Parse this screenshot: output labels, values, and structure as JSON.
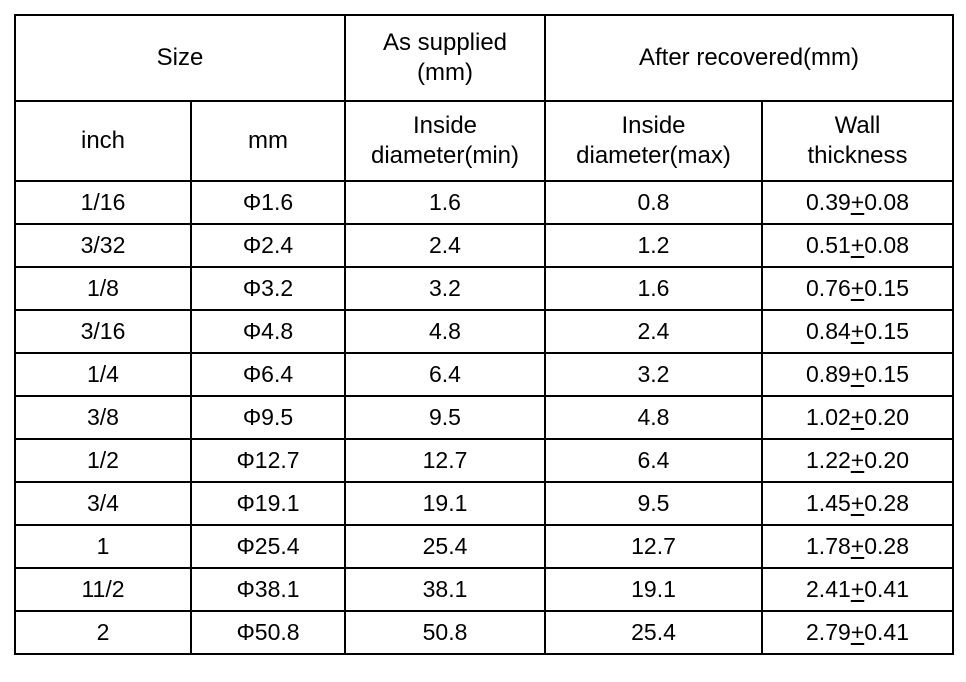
{
  "table": {
    "header": {
      "size": "Size",
      "as_supplied_lines": [
        "As supplied",
        "(mm)"
      ],
      "after_recovered": "After recovered(mm)",
      "col_inch": "inch",
      "col_mm": "mm",
      "inside_min_lines": [
        "Inside",
        "diameter(min)"
      ],
      "inside_max_lines": [
        "Inside",
        "diameter(max)"
      ],
      "wall_lines": [
        "Wall",
        "thickness"
      ]
    },
    "pm_symbol": "+",
    "rows": [
      {
        "inch": "1/16",
        "mm": "Φ1.6",
        "supplied_min": "1.6",
        "recovered_max": "0.8",
        "wall_base": "0.39",
        "wall_tol": "0.08"
      },
      {
        "inch": "3/32",
        "mm": "Φ2.4",
        "supplied_min": "2.4",
        "recovered_max": "1.2",
        "wall_base": "0.51",
        "wall_tol": "0.08"
      },
      {
        "inch": "1/8",
        "mm": "Φ3.2",
        "supplied_min": "3.2",
        "recovered_max": "1.6",
        "wall_base": "0.76",
        "wall_tol": "0.15"
      },
      {
        "inch": "3/16",
        "mm": "Φ4.8",
        "supplied_min": "4.8",
        "recovered_max": "2.4",
        "wall_base": "0.84",
        "wall_tol": "0.15"
      },
      {
        "inch": "1/4",
        "mm": "Φ6.4",
        "supplied_min": "6.4",
        "recovered_max": "3.2",
        "wall_base": "0.89",
        "wall_tol": "0.15"
      },
      {
        "inch": "3/8",
        "mm": "Φ9.5",
        "supplied_min": "9.5",
        "recovered_max": "4.8",
        "wall_base": "1.02",
        "wall_tol": "0.20"
      },
      {
        "inch": "1/2",
        "mm": "Φ12.7",
        "supplied_min": "12.7",
        "recovered_max": "6.4",
        "wall_base": "1.22",
        "wall_tol": "0.20"
      },
      {
        "inch": "3/4",
        "mm": "Φ19.1",
        "supplied_min": "19.1",
        "recovered_max": "9.5",
        "wall_base": "1.45",
        "wall_tol": "0.28"
      },
      {
        "inch": "1",
        "mm": "Φ25.4",
        "supplied_min": "25.4",
        "recovered_max": "12.7",
        "wall_base": "1.78",
        "wall_tol": "0.28"
      },
      {
        "inch": "11/2",
        "mm": "Φ38.1",
        "supplied_min": "38.1",
        "recovered_max": "19.1",
        "wall_base": "2.41",
        "wall_tol": "0.41"
      },
      {
        "inch": "2",
        "mm": "Φ50.8",
        "supplied_min": "50.8",
        "recovered_max": "25.4",
        "wall_base": "2.79",
        "wall_tol": "0.41"
      }
    ],
    "colors": {
      "border": "#000000",
      "text": "#000000",
      "background": "#ffffff"
    }
  }
}
